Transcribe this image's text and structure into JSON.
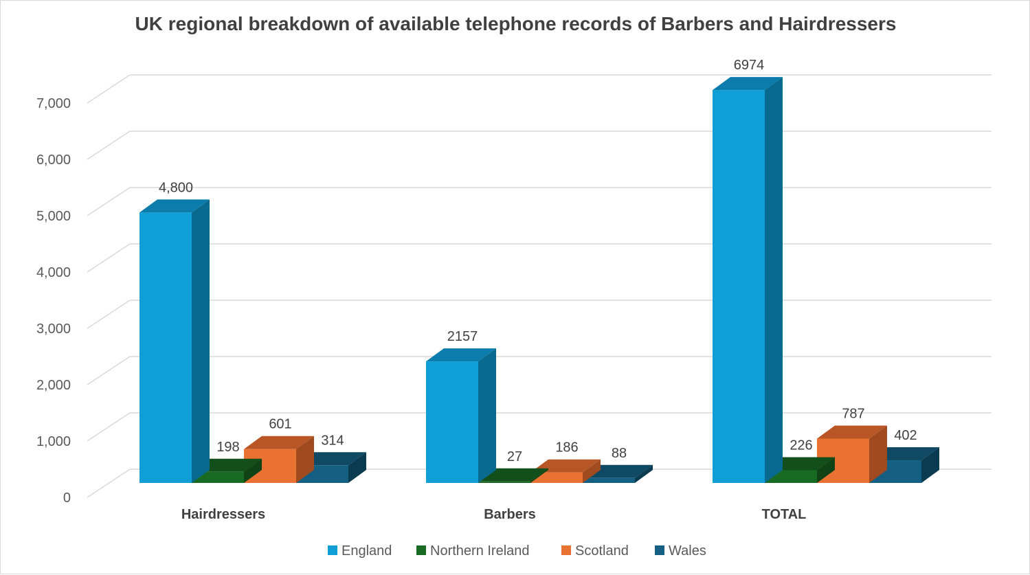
{
  "chart_data": {
    "type": "bar",
    "title": "UK regional breakdown of available telephone records of Barbers and Hairdressers",
    "xlabel": "",
    "ylabel": "",
    "categories": [
      "Hairdressers",
      "Barbers",
      "TOTAL"
    ],
    "series": [
      {
        "name": "England",
        "values": [
          4800,
          2157,
          6974
        ],
        "labels": [
          "4,800",
          "2157",
          "6974"
        ],
        "color": "#0f9ed5",
        "color_top": "#0b7cab",
        "color_side": "#086a8f"
      },
      {
        "name": "Northern Ireland",
        "values": [
          198,
          27,
          226
        ],
        "labels": [
          "198",
          "27",
          "226"
        ],
        "color": "#196b24",
        "color_top": "#124f1a",
        "color_side": "#0f4316"
      },
      {
        "name": "Scotland",
        "values": [
          601,
          186,
          787
        ],
        "labels": [
          "601",
          "186",
          "787"
        ],
        "color": "#e97132",
        "color_top": "#b85626",
        "color_side": "#a04a20"
      },
      {
        "name": "Wales",
        "values": [
          314,
          88,
          402
        ],
        "labels": [
          "314",
          "88",
          "402"
        ],
        "color": "#156082",
        "color_top": "#0f4963",
        "color_side": "#0b3b50"
      }
    ],
    "yticks": [
      "0",
      "1,000",
      "2,000",
      "3,000",
      "4,000",
      "5,000",
      "6,000",
      "7,000"
    ],
    "ylim": [
      0,
      7000
    ],
    "grid": true,
    "legend": "bottom"
  }
}
